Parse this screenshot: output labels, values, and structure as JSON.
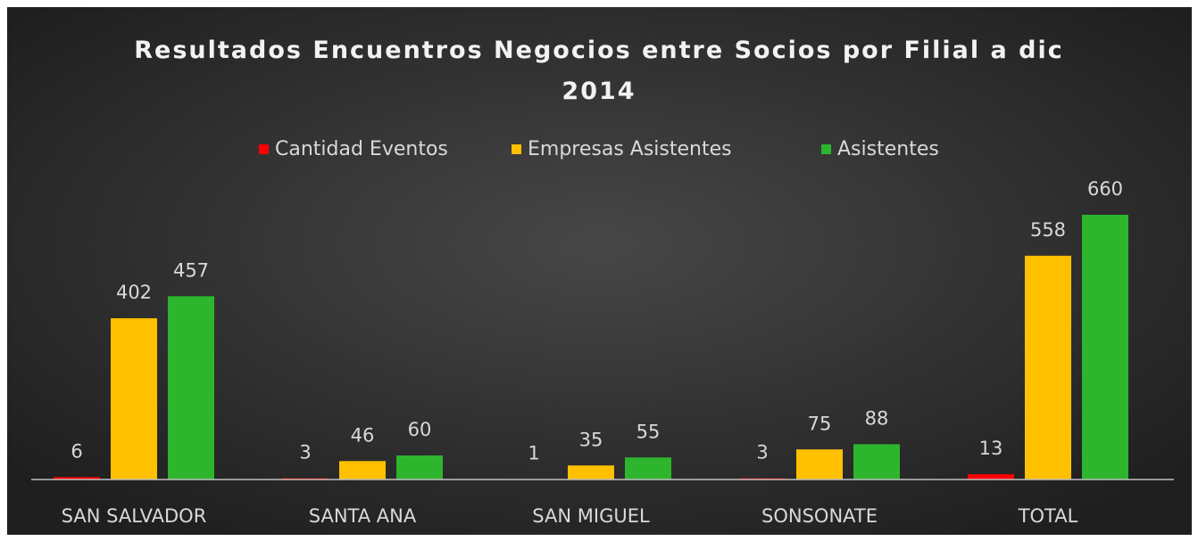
{
  "chart_data": {
    "type": "bar",
    "title": "Resultados Encuentros Negocios entre Socios por Filial a dic 2014",
    "categories": [
      "SAN SALVADOR",
      "SANTA ANA",
      "SAN MIGUEL",
      "SONSONATE",
      "TOTAL"
    ],
    "series": [
      {
        "name": "Cantidad Eventos",
        "color": "#ff0000",
        "values": [
          6,
          3,
          1,
          3,
          13
        ]
      },
      {
        "name": "Empresas Asistentes",
        "color": "#ffc000",
        "values": [
          402,
          46,
          35,
          75,
          558
        ]
      },
      {
        "name": "Asistentes",
        "color": "#2db52d",
        "values": [
          457,
          60,
          55,
          88,
          660
        ]
      }
    ],
    "legend": "top",
    "grid": false
  }
}
